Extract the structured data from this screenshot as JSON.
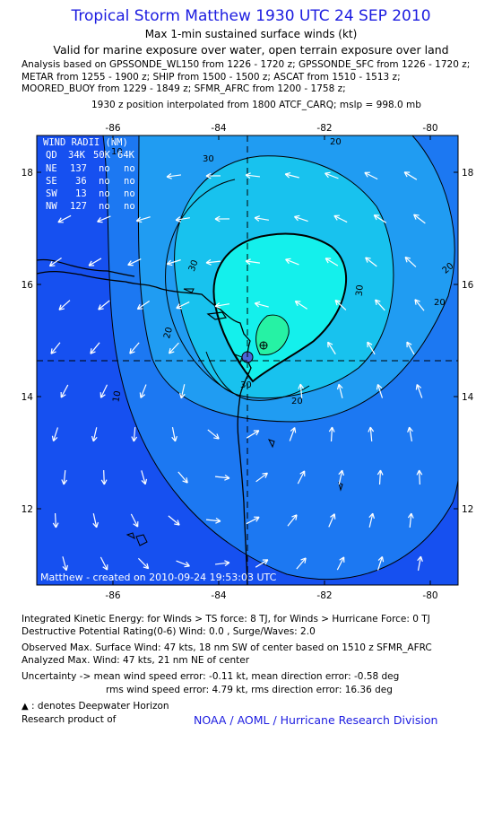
{
  "header": {
    "title": "Tropical Storm Matthew 1930 UTC 24 SEP 2010",
    "subtitle": "Max 1-min sustained surface winds (kt)",
    "validity": "Valid for marine exposure over water, open terrain exposure over land",
    "analysis_lines": [
      "Analysis based on GPSSONDE_WL150 from 1226 - 1720 z; GPSSONDE_SFC from 1226 - 1720 z;",
      "METAR from 1255 - 1900 z; SHIP from 1500 - 1500 z; ASCAT from 1510 - 1513 z;",
      "MOORED_BUOY from 1229 - 1849 z; SFMR_AFRC from 1200 - 1758 z;"
    ],
    "position_note": "1930 z position interpolated from 1800 ATCF_CARQ; mslp = 998.0 mb"
  },
  "chart_data": {
    "type": "contour-map",
    "x_ticks": [
      "-86",
      "-84",
      "-82",
      "-80"
    ],
    "y_ticks": [
      "18",
      "16",
      "14",
      "12"
    ],
    "xlim": [
      -87.4,
      -79.5
    ],
    "ylim": [
      10.7,
      18.7
    ],
    "center": {
      "lon": -83.5,
      "lat": 14.65
    },
    "contour_labels": [
      "30",
      "30",
      "20",
      "20",
      "10",
      "30",
      "30",
      "20",
      "20",
      "20",
      "10"
    ],
    "colors": {
      "level_0_10": "#1650f0",
      "level_10_20": "#1c78f2",
      "level_20_30": "#209cf2",
      "level_30_40": "#18c2ee",
      "level_40_50": "#14f0ec",
      "level_50_plus": "#26f2a4",
      "land": "#000000",
      "arrows": "#ffffff"
    },
    "wind_radii": {
      "title": "WIND RADII (NM)",
      "headers": [
        "QD",
        "34K",
        "50K",
        "64K"
      ],
      "rows": [
        [
          "NE",
          "137",
          "no",
          "no"
        ],
        [
          "SE",
          "36",
          "no",
          "no"
        ],
        [
          "SW",
          "13",
          "no",
          "no"
        ],
        [
          "NW",
          "127",
          "no",
          "no"
        ]
      ]
    },
    "footer_label": "Matthew - created on 2010-09-24 19:53:03 UTC"
  },
  "stats": {
    "ike": "Integrated Kinetic Energy:  for Winds > TS force: 8 TJ,  for Winds > Hurricane Force: 0 TJ",
    "dpr": "Destructive Potential Rating(0-6)   Wind: 0.0 , Surge/Waves: 2.0",
    "obs_max": "Observed Max. Surface Wind: 47 kts, 18 nm SW of center based on 1510 z SFMR_AFRC",
    "analyzed_max": "Analyzed Max. Wind: 47 kts, 21 nm NE of center",
    "uncertainty1": "Uncertainty -> mean wind speed error:  -0.11 kt,   mean direction error:  -0.58 deg",
    "uncertainty2": "rms wind speed error: 4.79 kt,   rms direction error: 16.36 deg",
    "legend": ": denotes Deepwater Horizon",
    "research": "Research product of",
    "org_link": "NOAA / AOML / Hurricane Research Division"
  }
}
